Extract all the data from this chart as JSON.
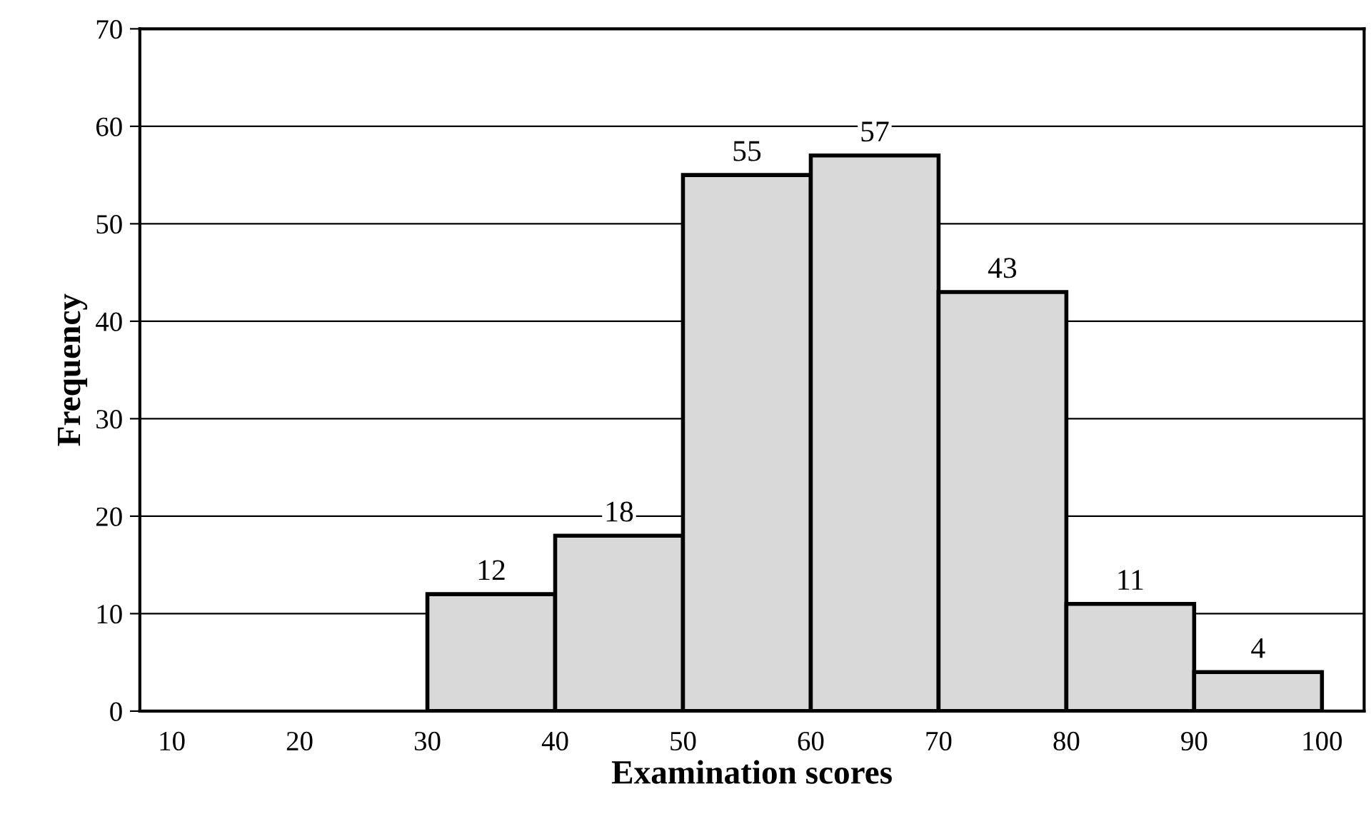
{
  "chart_data": {
    "type": "histogram",
    "xlabel": "Examination scores",
    "ylabel": "Frequency",
    "bins": [
      30,
      40,
      50,
      60,
      70,
      80,
      90,
      100
    ],
    "values": [
      12,
      18,
      55,
      57,
      43,
      11,
      4
    ],
    "data_labels": true,
    "color": "#d9d9d9",
    "xlim": [
      7.5,
      103.3
    ],
    "xticks": [
      10,
      20,
      30,
      40,
      50,
      60,
      70,
      80,
      90,
      100
    ],
    "ylim": [
      0,
      70
    ],
    "yticks": [
      0,
      10,
      20,
      30,
      40,
      50,
      60,
      70
    ],
    "grid": "y"
  }
}
